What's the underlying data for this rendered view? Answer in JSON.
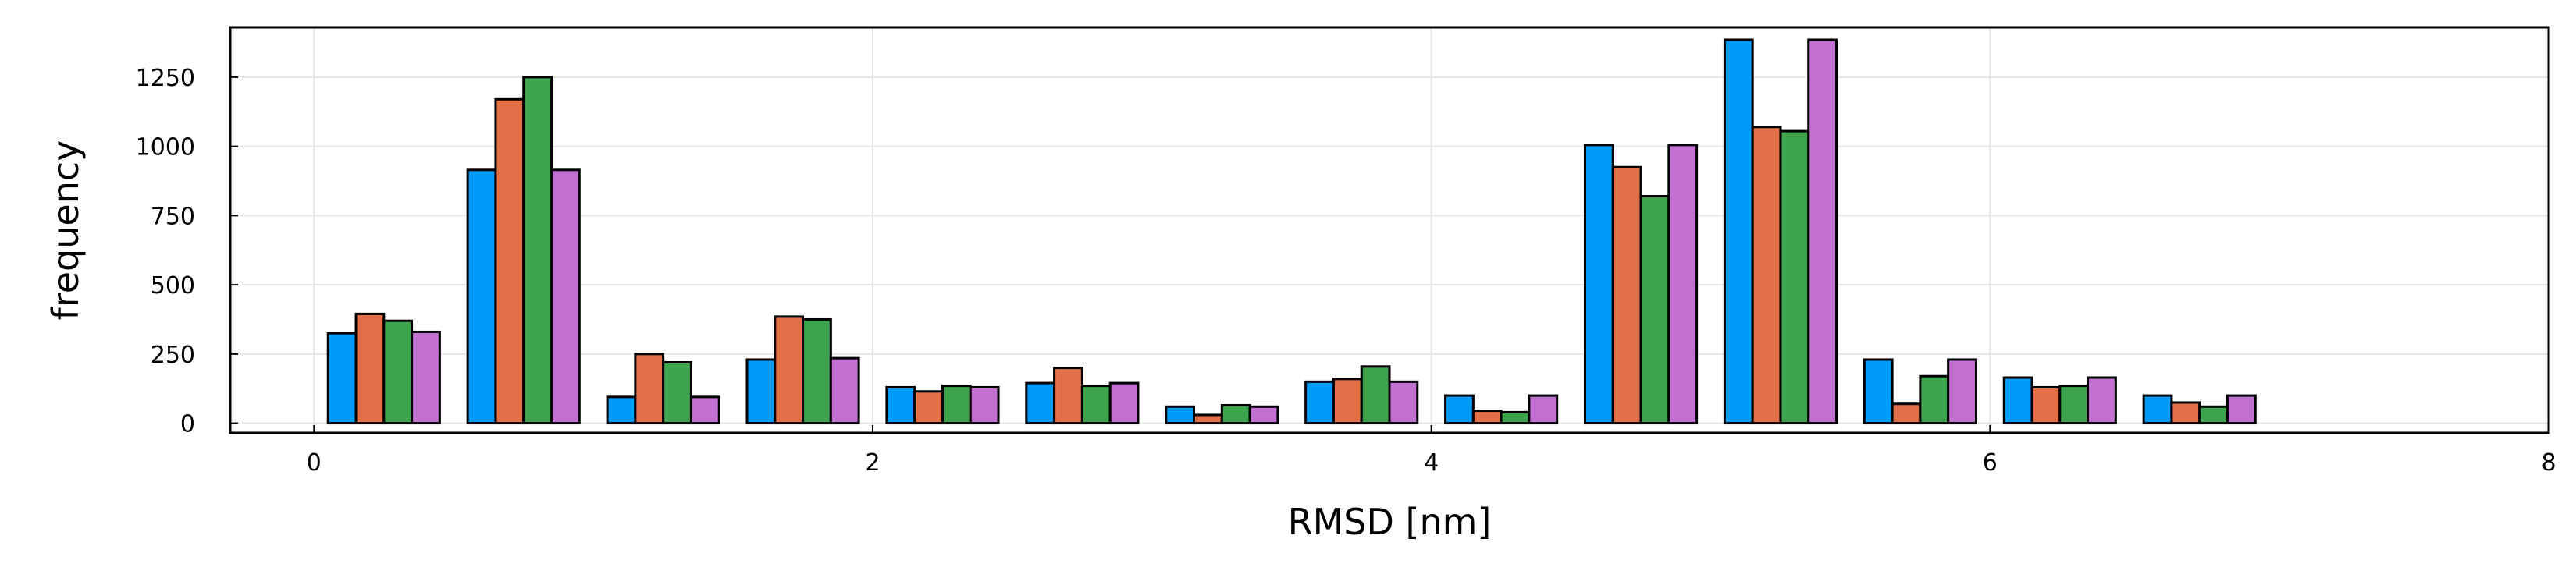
{
  "chart_data": {
    "type": "bar",
    "xlabel": "RMSD [nm]",
    "ylabel": "frequency",
    "xlim": [
      -0.3,
      8
    ],
    "ylim": [
      -35,
      1430
    ],
    "xticks": [
      0,
      2,
      4,
      6,
      8
    ],
    "yticks": [
      0,
      250,
      500,
      750,
      1000,
      1250
    ],
    "xtick_labels": [
      "0",
      "2",
      "4",
      "6",
      "8"
    ],
    "ytick_labels": [
      "0",
      "250",
      "500",
      "750",
      "1000",
      "1250"
    ],
    "grid": true,
    "legend": "none",
    "bin_starts": [
      0.05,
      0.55,
      1.05,
      1.55,
      2.05,
      2.55,
      3.05,
      3.55,
      4.05,
      4.55,
      5.05,
      5.55,
      6.05,
      6.55
    ],
    "bin_width": 0.4,
    "series": [
      {
        "color": "#009af9",
        "values": [
          325,
          915,
          95,
          230,
          130,
          145,
          60,
          150,
          100,
          1005,
          1385,
          230,
          165,
          100
        ]
      },
      {
        "color": "#e26f46",
        "values": [
          395,
          1170,
          250,
          385,
          115,
          200,
          30,
          160,
          45,
          925,
          1070,
          70,
          130,
          75
        ]
      },
      {
        "color": "#3da44d",
        "values": [
          370,
          1250,
          220,
          375,
          135,
          135,
          65,
          205,
          40,
          820,
          1055,
          170,
          135,
          60
        ]
      },
      {
        "color": "#c271d2",
        "values": [
          330,
          915,
          95,
          235,
          130,
          145,
          60,
          150,
          100,
          1005,
          1385,
          230,
          165,
          100
        ]
      }
    ]
  }
}
